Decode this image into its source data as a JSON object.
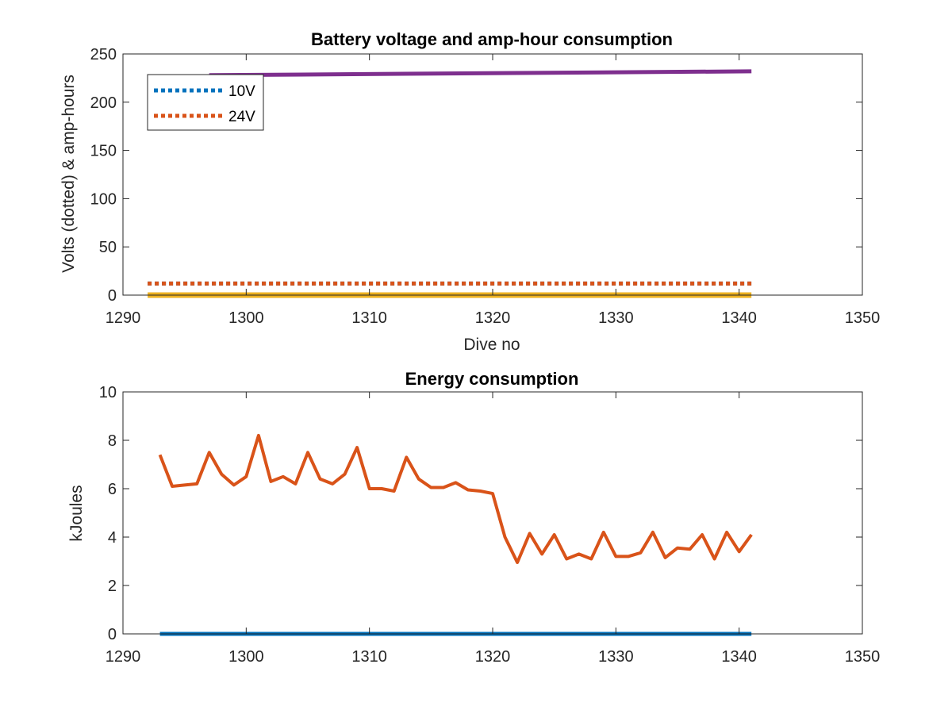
{
  "chart_data": [
    {
      "type": "line",
      "title": "Battery voltage and amp-hour consumption",
      "xlabel": "Dive no",
      "ylabel": "Volts (dotted) & amp-hours",
      "xlim": [
        1290,
        1350
      ],
      "ylim": [
        0,
        250
      ],
      "xticks": [
        1290,
        1300,
        1310,
        1320,
        1330,
        1340,
        1350
      ],
      "yticks": [
        0,
        50,
        100,
        150,
        200,
        250
      ],
      "grid": false,
      "legend_position": "top-left",
      "series": [
        {
          "name": "10V",
          "style": "dotted",
          "color": "#0072BD",
          "points": [
            [
              1292,
              12
            ],
            [
              1341,
              12
            ]
          ]
        },
        {
          "name": "24V",
          "style": "dotted",
          "color": "#D95319",
          "points": [
            [
              1292,
              12
            ],
            [
              1341,
              12
            ]
          ]
        },
        {
          "style": "solid",
          "color": "#EDB120",
          "points": [
            [
              1292,
              0
            ],
            [
              1341,
              0
            ]
          ]
        },
        {
          "style": "solid",
          "color": "#7E2F8E",
          "points": [
            [
              1297,
              228
            ],
            [
              1341,
              232
            ]
          ]
        }
      ]
    },
    {
      "type": "line",
      "title": "Energy consumption",
      "xlabel": "",
      "ylabel": "kJoules",
      "xlim": [
        1290,
        1350
      ],
      "ylim": [
        0,
        10
      ],
      "xticks": [
        1290,
        1300,
        1310,
        1320,
        1330,
        1340,
        1350
      ],
      "yticks": [
        0,
        2,
        4,
        6,
        8,
        10
      ],
      "grid": false,
      "series": [
        {
          "style": "solid",
          "color": "#D95319",
          "points": [
            [
              1293,
              7.4
            ],
            [
              1294,
              6.1
            ],
            [
              1295,
              6.15
            ],
            [
              1296,
              6.2
            ],
            [
              1297,
              7.5
            ],
            [
              1298,
              6.6
            ],
            [
              1299,
              6.15
            ],
            [
              1300,
              6.5
            ],
            [
              1301,
              8.2
            ],
            [
              1302,
              6.3
            ],
            [
              1303,
              6.5
            ],
            [
              1304,
              6.2
            ],
            [
              1305,
              7.5
            ],
            [
              1306,
              6.4
            ],
            [
              1307,
              6.2
            ],
            [
              1308,
              6.6
            ],
            [
              1309,
              7.7
            ],
            [
              1310,
              6.0
            ],
            [
              1311,
              6.0
            ],
            [
              1312,
              5.9
            ],
            [
              1313,
              7.3
            ],
            [
              1314,
              6.4
            ],
            [
              1315,
              6.05
            ],
            [
              1316,
              6.05
            ],
            [
              1317,
              6.25
            ],
            [
              1318,
              5.95
            ],
            [
              1319,
              5.9
            ],
            [
              1320,
              5.8
            ],
            [
              1321,
              4.0
            ],
            [
              1322,
              2.95
            ],
            [
              1323,
              4.15
            ],
            [
              1324,
              3.3
            ],
            [
              1325,
              4.1
            ],
            [
              1326,
              3.1
            ],
            [
              1327,
              3.3
            ],
            [
              1328,
              3.1
            ],
            [
              1329,
              4.2
            ],
            [
              1330,
              3.2
            ],
            [
              1331,
              3.2
            ],
            [
              1332,
              3.35
            ],
            [
              1333,
              4.2
            ],
            [
              1334,
              3.15
            ],
            [
              1335,
              3.55
            ],
            [
              1336,
              3.5
            ],
            [
              1337,
              4.1
            ],
            [
              1338,
              3.1
            ],
            [
              1339,
              4.2
            ],
            [
              1340,
              3.4
            ],
            [
              1341,
              4.1
            ]
          ]
        },
        {
          "style": "solid",
          "color": "#0072BD",
          "points": [
            [
              1293,
              0
            ],
            [
              1341,
              0
            ]
          ]
        }
      ]
    }
  ]
}
